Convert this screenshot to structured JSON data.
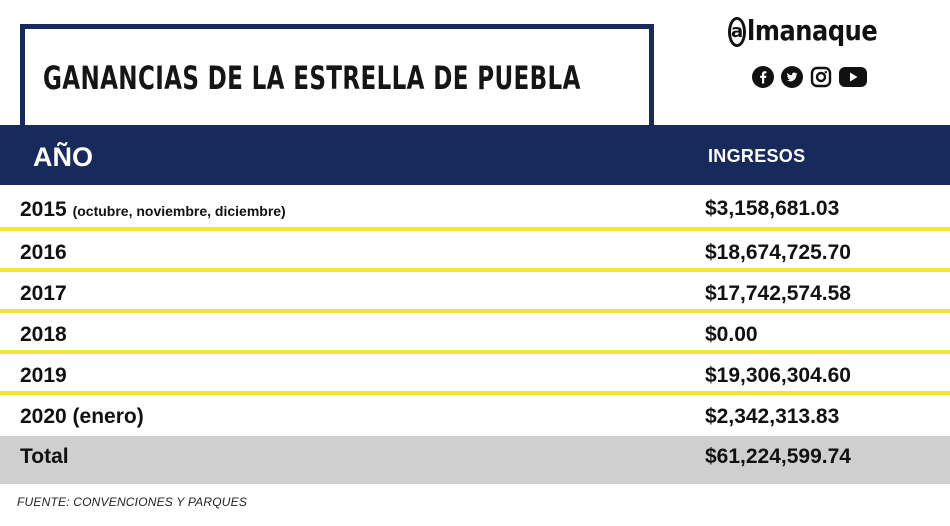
{
  "title": "GANANCIAS DE LA ESTRELLA DE PUEBLA",
  "brand": {
    "at_symbol": "a",
    "name": "lmanaque",
    "socials": [
      "facebook-icon",
      "twitter-icon",
      "instagram-icon",
      "youtube-icon"
    ]
  },
  "table": {
    "headers": {
      "year": "AÑO",
      "income": "INGRESOS"
    },
    "rows": [
      {
        "year": "2015",
        "note": "(octubre, noviembre, diciembre)",
        "value": "$3,158,681.03"
      },
      {
        "year": "2016",
        "note": "",
        "value": "$18,674,725.70"
      },
      {
        "year": "2017",
        "note": "",
        "value": "$17,742,574.58"
      },
      {
        "year": "2018",
        "note": "",
        "value": "$0.00"
      },
      {
        "year": "2019",
        "note": "",
        "value": "$19,306,304.60"
      },
      {
        "year": "2020 (enero)",
        "note": "",
        "value": "$2,342,313.83"
      }
    ],
    "total": {
      "label": "Total",
      "value": "$61,224,599.74"
    }
  },
  "source": "FUENTE: CONVENCIONES Y PARQUES",
  "colors": {
    "navy": "#182a5c",
    "yellow": "#f4e33a",
    "gray": "#cfcfcf"
  }
}
